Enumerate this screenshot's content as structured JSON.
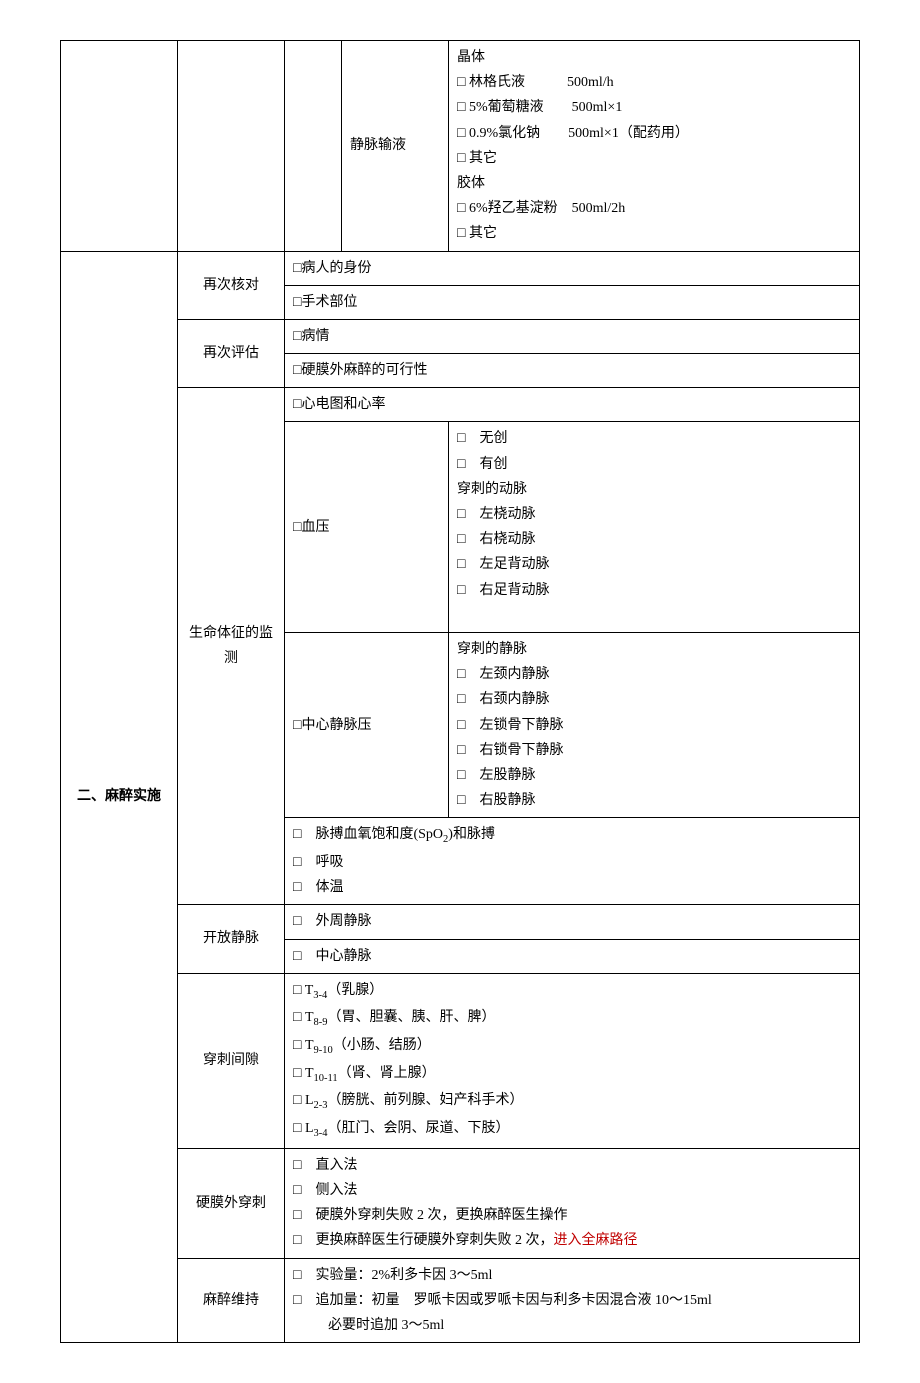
{
  "iv": {
    "label": "静脉输液",
    "crystalloid_header": "晶体",
    "ringer": "林格氏液",
    "ringer_dose": "500ml/h",
    "glucose": "5%葡萄糖液",
    "glucose_dose": "500ml×1",
    "nacl": "0.9%氯化钠",
    "nacl_dose": "500ml×1（配药用）",
    "other1": "其它",
    "colloid_header": "胶体",
    "hes": "6%羟乙基淀粉",
    "hes_dose": "500ml/2h",
    "other2": "其它"
  },
  "section2": {
    "title": "二、麻醉实施",
    "recheck": {
      "label": "再次核对",
      "identity": "病人的身份",
      "site": "手术部位"
    },
    "reassess": {
      "label": "再次评估",
      "condition": "病情",
      "feasibility": "硬膜外麻醉的可行性"
    },
    "vitals": {
      "label": "生命体征的监测",
      "ecg": "心电图和心率",
      "bp": {
        "label": "血压",
        "noninvasive": "无创",
        "invasive": "有创",
        "artery_header": "穿刺的动脉",
        "left_radial": "左桡动脉",
        "right_radial": "右桡动脉",
        "left_dorsalis": "左足背动脉",
        "right_dorsalis": "右足背动脉"
      },
      "cvp": {
        "label": "中心静脉压",
        "vein_header": "穿刺的静脉",
        "left_ij": "左颈内静脉",
        "right_ij": "右颈内静脉",
        "left_sc": "左锁骨下静脉",
        "right_sc": "右锁骨下静脉",
        "left_fem": "左股静脉",
        "right_fem": "右股静脉"
      },
      "spo2": "脉搏血氧饱和度(SpO",
      "spo2_sub": "2",
      "spo2_tail": ")和脉搏",
      "resp": "呼吸",
      "temp": "体温"
    },
    "open_vein": {
      "label": "开放静脉",
      "peripheral": "外周静脉",
      "central": "中心静脉"
    },
    "puncture_gap": {
      "label": "穿刺间隙",
      "t34_pre": "T",
      "t34_sub": "3-4",
      "t34_site": "（乳腺）",
      "t89_pre": "T",
      "t89_sub": "8-9",
      "t89_site": "（胃、胆囊、胰、肝、脾）",
      "t910_pre": "T",
      "t910_sub": "9-10",
      "t910_site": "（小肠、结肠）",
      "t1011_pre": "T",
      "t1011_sub": "10-11",
      "t1011_site": "（肾、肾上腺）",
      "l23_pre": "L",
      "l23_sub": "2-3",
      "l23_site": "（膀胱、前列腺、妇产科手术）",
      "l34_pre": "L",
      "l34_sub": "3-4",
      "l34_site": "（肛门、会阴、尿道、下肢）"
    },
    "epidural": {
      "label": "硬膜外穿刺",
      "direct": "直入法",
      "lateral": "侧入法",
      "fail_change": "硬膜外穿刺失败 2 次，更换麻醉医生操作",
      "fail_ga_pre": "更换麻醉医生行硬膜外穿刺失败 2 次，",
      "fail_ga_red": "进入全麻路径"
    },
    "maintenance": {
      "label": "麻醉维持",
      "test_dose": "实验量：2%利多卡因 3～5ml",
      "top_up": "追加量：初量　罗哌卡因或罗哌卡因与利多卡因混合液 10～15ml",
      "top_up2": "必要时追加 3～5ml"
    }
  }
}
